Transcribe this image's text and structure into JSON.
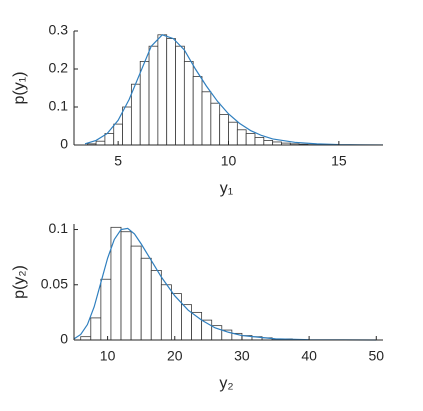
{
  "chart_data": [
    {
      "type": "histogram",
      "xlabel": "y₁",
      "ylabel": "p(y₁)",
      "bins": [
        3.6,
        4.0,
        4.4,
        4.8,
        5.2,
        5.6,
        6.0,
        6.4,
        6.8,
        7.2,
        7.6,
        8.0,
        8.4,
        8.8,
        9.2,
        9.6,
        10.0,
        10.4,
        10.8,
        11.2,
        11.6,
        12.0,
        12.4,
        12.8,
        13.2,
        13.6,
        14.0
      ],
      "values": [
        0.003,
        0.01,
        0.03,
        0.055,
        0.1,
        0.16,
        0.22,
        0.26,
        0.29,
        0.28,
        0.26,
        0.22,
        0.18,
        0.14,
        0.11,
        0.08,
        0.06,
        0.04,
        0.03,
        0.02,
        0.012,
        0.008,
        0.005,
        0.003,
        0.002,
        0.001
      ],
      "color": "#ffffff",
      "edgecolor": "#3a3a3a",
      "curve": {
        "color": "#2f7fbf",
        "x": [
          3.5,
          4,
          4.5,
          5,
          5.5,
          6,
          6.5,
          7,
          7.5,
          8,
          8.5,
          9,
          9.5,
          10,
          10.5,
          11,
          11.5,
          12,
          13,
          14,
          15,
          16,
          17
        ],
        "values": [
          0.003,
          0.012,
          0.03,
          0.065,
          0.12,
          0.19,
          0.26,
          0.29,
          0.28,
          0.25,
          0.2,
          0.155,
          0.115,
          0.082,
          0.057,
          0.038,
          0.025,
          0.016,
          0.007,
          0.003,
          0.001,
          0.0005,
          0.0002
        ]
      },
      "xlim": [
        3,
        17
      ],
      "xticks": [
        5,
        10,
        15
      ],
      "ylim": [
        0,
        0.3
      ],
      "yticks": [
        0,
        0.1,
        0.2,
        0.3
      ]
    },
    {
      "type": "histogram",
      "xlabel": "y₂",
      "ylabel": "p(y₂)",
      "bins": [
        6,
        7.5,
        9,
        10.5,
        12,
        13.5,
        15,
        16.5,
        18,
        19.5,
        21,
        22.5,
        24,
        25.5,
        27,
        28.5,
        30,
        31.5,
        33,
        34.5,
        36,
        37.5,
        39
      ],
      "values": [
        0.003,
        0.02,
        0.055,
        0.102,
        0.098,
        0.085,
        0.074,
        0.063,
        0.05,
        0.042,
        0.032,
        0.025,
        0.018,
        0.013,
        0.009,
        0.006,
        0.004,
        0.003,
        0.002,
        0.001,
        0.001,
        0.0005
      ],
      "color": "#ffffff",
      "edgecolor": "#3a3a3a",
      "curve": {
        "color": "#2f7fbf",
        "x": [
          5,
          6,
          7,
          8,
          9,
          10,
          11,
          12,
          13,
          14,
          15,
          16,
          17,
          18,
          20,
          22,
          24,
          26,
          28,
          30,
          35,
          40,
          45,
          50
        ],
        "values": [
          0.001,
          0.005,
          0.014,
          0.03,
          0.052,
          0.074,
          0.091,
          0.1,
          0.101,
          0.096,
          0.087,
          0.077,
          0.067,
          0.057,
          0.04,
          0.027,
          0.018,
          0.011,
          0.007,
          0.004,
          0.001,
          0.0002,
          0.0001,
          3e-05
        ]
      },
      "xlim": [
        5,
        51
      ],
      "xticks": [
        10,
        20,
        30,
        40,
        50
      ],
      "ylim": [
        0,
        0.105
      ],
      "yticks": [
        0,
        0.05,
        0.1
      ]
    }
  ]
}
